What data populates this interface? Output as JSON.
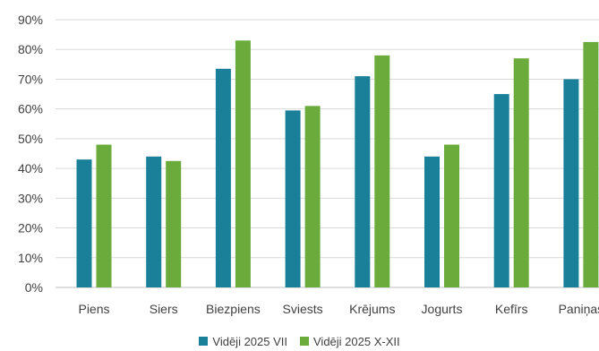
{
  "chart_data": {
    "type": "bar",
    "categories": [
      "Piens",
      "Siers",
      "Biezpiens",
      "Sviests",
      "Krējums",
      "Jogurts",
      "Kefīrs",
      "Paniņas"
    ],
    "series": [
      {
        "name": "Vidēji 2025 VII",
        "color": "#1a7f99",
        "values": [
          43,
          44,
          73.5,
          59.5,
          71,
          44,
          65,
          70
        ]
      },
      {
        "name": "Vidēji 2025 X-XII",
        "color": "#6aab3c",
        "values": [
          48,
          42.5,
          83,
          61,
          78,
          48,
          77,
          82.5
        ]
      }
    ],
    "y_ticks": [
      "0%",
      "10%",
      "20%",
      "30%",
      "40%",
      "50%",
      "60%",
      "70%",
      "80%",
      "90%"
    ],
    "ylim": [
      0,
      90
    ],
    "grid": true,
    "legend_position": "bottom"
  }
}
